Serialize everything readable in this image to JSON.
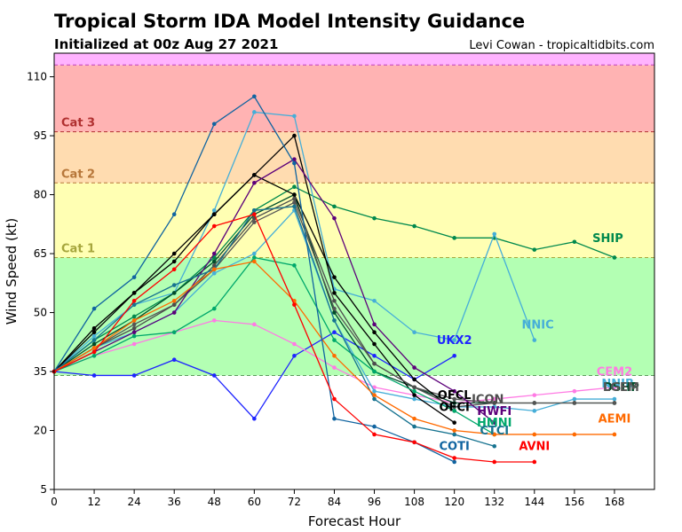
{
  "chart_data": {
    "type": "line",
    "title": "Tropical Storm IDA Model Intensity Guidance",
    "subtitle": "Initialized at 00z Aug 27 2021",
    "credit": "Levi Cowan - tropicaltidbits.com",
    "xlabel": "Forecast Hour",
    "ylabel": "Wind Speed (kt)",
    "xlim": [
      0,
      180
    ],
    "ylim": [
      5,
      116
    ],
    "xticks": [
      "0",
      "12",
      "24",
      "36",
      "48",
      "60",
      "72",
      "84",
      "96",
      "108",
      "120",
      "132",
      "144",
      "156",
      "168"
    ],
    "xtick_values": [
      0,
      12,
      24,
      36,
      48,
      60,
      72,
      84,
      96,
      108,
      120,
      132,
      144,
      156,
      168
    ],
    "yticks": [
      "5",
      "20",
      "35",
      "50",
      "65",
      "80",
      "95",
      "110"
    ],
    "ytick_values": [
      5,
      20,
      35,
      50,
      65,
      80,
      95,
      110
    ],
    "bands": [
      {
        "label": "",
        "from": 5,
        "to": 34,
        "color": "#ffffff"
      },
      {
        "label": "",
        "from": 34,
        "to": 64,
        "color": "#b3ffb3"
      },
      {
        "label": "Cat 1",
        "from": 64,
        "to": 83,
        "color": "#ffffb3",
        "label_color": "#a6a63d",
        "line_color": "#a6a63d"
      },
      {
        "label": "Cat 2",
        "from": 83,
        "to": 96,
        "color": "#ffdcb0",
        "label_color": "#b7773a",
        "line_color": "#b7773a"
      },
      {
        "label": "Cat 3",
        "from": 96,
        "to": 113,
        "color": "#ffb3b3",
        "label_color": "#b03030",
        "line_color": "#b03030"
      },
      {
        "label": "",
        "from": 113,
        "to": 116,
        "color": "#ffb3ff",
        "line_color": "#c040c0"
      }
    ],
    "band_bottom_line": {
      "value": 34,
      "color": "#5c9c5c"
    },
    "series": [
      {
        "name": "SHIP",
        "color": "#00894d",
        "label_xy": [
          166,
          68
        ],
        "x": [
          0,
          12,
          24,
          36,
          48,
          60,
          72,
          84,
          96,
          108,
          120,
          132,
          144,
          156,
          168
        ],
        "y": [
          35,
          43,
          49,
          55,
          64,
          76,
          82,
          77,
          74,
          72,
          69,
          69,
          66,
          68,
          64
        ]
      },
      {
        "name": "NNIC",
        "color": "#46aed8",
        "label_xy": [
          145,
          46
        ],
        "x": [
          0,
          12,
          24,
          36,
          48,
          60,
          72,
          84,
          96,
          108,
          120,
          132,
          144
        ],
        "y": [
          35,
          44,
          52,
          55,
          76,
          101,
          100,
          56,
          53,
          45,
          43,
          70,
          43
        ]
      },
      {
        "name": "UKX2",
        "color": "#1e24ff",
        "label_xy": [
          120,
          42
        ],
        "x": [
          0,
          12,
          24,
          36,
          48,
          60,
          72,
          84,
          96,
          108,
          120
        ],
        "y": [
          35,
          34,
          34,
          38,
          34,
          23,
          39,
          45,
          39,
          33,
          39
        ]
      },
      {
        "name": "CEM2",
        "color": "#ff7ae4",
        "label_xy": [
          168,
          34
        ],
        "x": [
          0,
          12,
          24,
          36,
          48,
          60,
          72,
          84,
          96,
          108,
          120,
          132,
          144,
          156,
          168
        ],
        "y": [
          35,
          39,
          42,
          45,
          48,
          47,
          42,
          36,
          31,
          29,
          27,
          28,
          29,
          30,
          31
        ]
      },
      {
        "name": "NNIB",
        "color": "#46aed8",
        "label_xy": [
          169,
          31
        ],
        "x": [
          0,
          12,
          24,
          36,
          48,
          60,
          72,
          84,
          96,
          108,
          120,
          132,
          144,
          156,
          168
        ],
        "y": [
          35,
          41,
          45,
          50,
          60,
          65,
          76,
          48,
          30,
          28,
          26,
          26,
          25,
          28,
          28
        ]
      },
      {
        "name": "DSHP",
        "color": "#004d2a",
        "label_xy": [
          170,
          30
        ],
        "x": [
          0,
          12,
          24,
          36,
          48,
          60,
          72,
          84,
          96,
          108,
          120,
          132,
          144,
          156,
          168
        ],
        "y": [
          35,
          42,
          48,
          55,
          63,
          75,
          80,
          50,
          35,
          31,
          27,
          27,
          27,
          27,
          27
        ]
      },
      {
        "name": "LGEM",
        "color": "#555555",
        "label_xy": [
          170,
          30
        ],
        "x": [
          0,
          12,
          24,
          36,
          48,
          60,
          72,
          84,
          96,
          108,
          120,
          132,
          144,
          156,
          168
        ],
        "y": [
          35,
          41,
          47,
          52,
          61,
          73,
          78,
          51,
          37,
          31,
          28,
          27,
          27,
          27,
          27
        ]
      },
      {
        "name": "OFCL",
        "color": "#000000",
        "label_xy": [
          120,
          28
        ],
        "x": [
          0,
          12,
          24,
          36,
          48,
          60,
          72,
          84,
          96,
          108,
          120
        ],
        "y": [
          35,
          45,
          55,
          63,
          75,
          85,
          80,
          59,
          45,
          33,
          25
        ]
      },
      {
        "name": "OFCI",
        "color": "#000000",
        "label_xy": [
          120,
          25
        ],
        "x": [
          0,
          12,
          24,
          36,
          48,
          60,
          72,
          84,
          96,
          108,
          120
        ],
        "y": [
          35,
          46,
          55,
          65,
          75,
          85,
          95,
          55,
          42,
          29,
          22
        ]
      },
      {
        "name": "ICON",
        "color": "#4d4d4d",
        "label_xy": [
          130,
          27
        ],
        "x": [
          0,
          12,
          24,
          36,
          48,
          60,
          72,
          84,
          96,
          108,
          120,
          132
        ],
        "y": [
          35,
          41,
          46,
          52,
          62,
          74,
          79,
          53,
          37,
          31,
          26,
          27
        ]
      },
      {
        "name": "HWFI",
        "color": "#5c007a",
        "label_xy": [
          132,
          24
        ],
        "x": [
          0,
          12,
          24,
          36,
          48,
          60,
          72,
          84,
          96,
          108,
          120,
          132
        ],
        "y": [
          35,
          40,
          45,
          50,
          65,
          83,
          89,
          74,
          47,
          36,
          30,
          22
        ]
      },
      {
        "name": "HMNI",
        "color": "#00a86b",
        "label_xy": [
          132,
          21
        ],
        "x": [
          0,
          12,
          24,
          36,
          48,
          60,
          72,
          84,
          96,
          108,
          120,
          132
        ],
        "y": [
          35,
          39,
          44,
          45,
          51,
          64,
          62,
          43,
          35,
          30,
          25,
          19
        ]
      },
      {
        "name": "CTCI",
        "color": "#177390",
        "label_xy": [
          132,
          19
        ],
        "x": [
          0,
          12,
          24,
          36,
          48,
          60,
          72,
          84,
          96,
          108,
          120,
          132
        ],
        "y": [
          35,
          43,
          52,
          57,
          61,
          76,
          77,
          48,
          28,
          21,
          19,
          16
        ]
      },
      {
        "name": "AEMI",
        "color": "#ff6a00",
        "label_xy": [
          168,
          22
        ],
        "x": [
          0,
          12,
          24,
          36,
          48,
          60,
          72,
          84,
          96,
          108,
          120,
          132,
          144,
          156,
          168
        ],
        "y": [
          35,
          41,
          48,
          53,
          61,
          63,
          53,
          39,
          29,
          23,
          20,
          19,
          19,
          19,
          19
        ]
      },
      {
        "name": "COTI",
        "color": "#1064a0",
        "label_xy": [
          120,
          15
        ],
        "x": [
          0,
          12,
          24,
          36,
          48,
          60,
          72,
          84,
          96,
          108,
          120
        ],
        "y": [
          35,
          51,
          59,
          75,
          98,
          105,
          88,
          23,
          21,
          17,
          12
        ]
      },
      {
        "name": "AVNI",
        "color": "#ff0000",
        "label_xy": [
          144,
          15
        ],
        "x": [
          0,
          12,
          24,
          36,
          48,
          60,
          72,
          84,
          96,
          108,
          120,
          132,
          144
        ],
        "y": [
          35,
          40,
          53,
          61,
          72,
          75,
          52,
          28,
          19,
          17,
          13,
          12,
          12
        ]
      }
    ]
  }
}
